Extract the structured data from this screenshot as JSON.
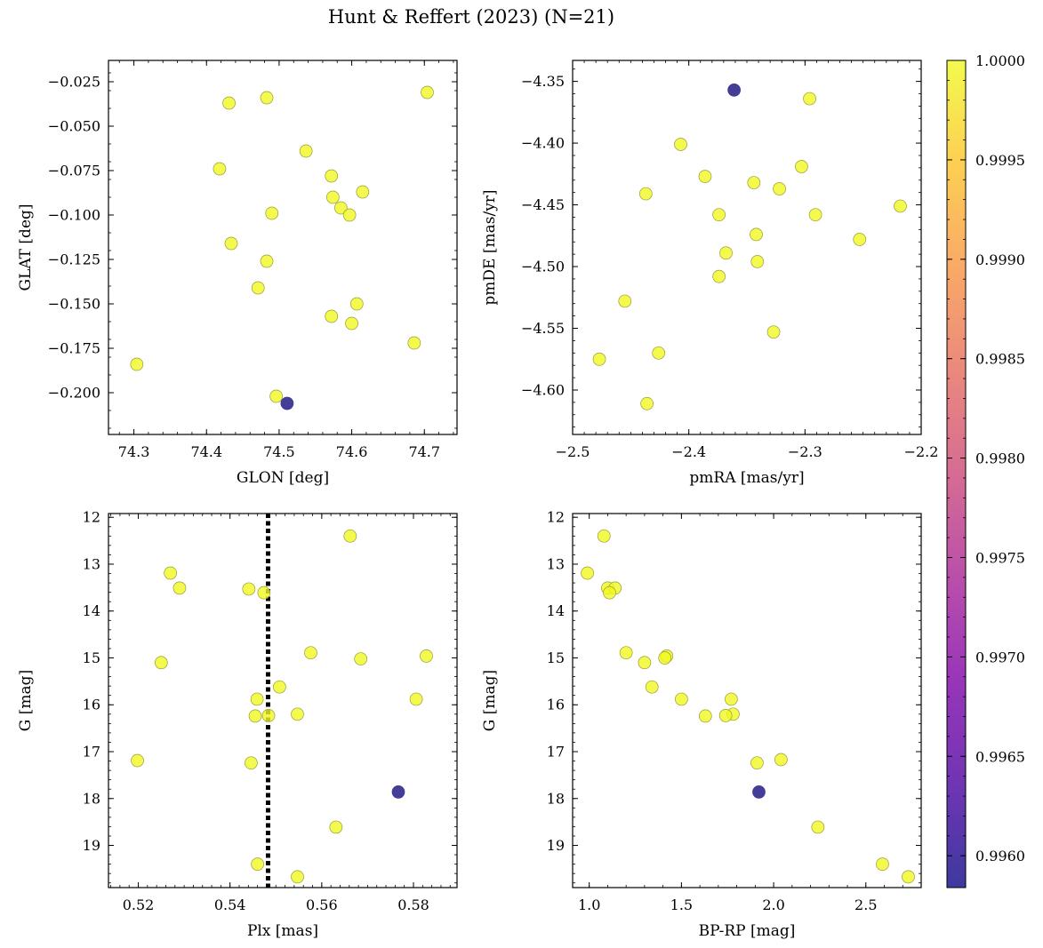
{
  "title": "Hunt & Reffert (2023) (N=21)",
  "colors": {
    "member": "#f0f921",
    "member_edge": "#9a9a3a",
    "nonmember": "#3b3492",
    "vline": "#000000"
  },
  "colorbar": {
    "colormap": "plasma",
    "range": [
      0.99584,
      1.0
    ],
    "ticks": [
      "0.9960",
      "0.9965",
      "0.9970",
      "0.9975",
      "0.9980",
      "0.9985",
      "0.9990",
      "0.9995",
      "1.0000"
    ]
  },
  "chart_data": [
    {
      "type": "scatter",
      "id": "glon-glat",
      "xlabel": "GLON [deg]",
      "ylabel": "GLAT [deg]",
      "xlim": [
        74.265,
        74.745
      ],
      "ylim": [
        -0.2235,
        -0.013
      ],
      "xticks": [
        {
          "v": 74.3,
          "label": "74.3"
        },
        {
          "v": 74.4,
          "label": "74.4"
        },
        {
          "v": 74.5,
          "label": "74.5"
        },
        {
          "v": 74.6,
          "label": "74.6"
        },
        {
          "v": 74.7,
          "label": "74.7"
        }
      ],
      "yticks": [
        {
          "v": -0.025,
          "label": "−0.025"
        },
        {
          "v": -0.05,
          "label": "−0.050"
        },
        {
          "v": -0.075,
          "label": "−0.075"
        },
        {
          "v": -0.1,
          "label": "−0.100"
        },
        {
          "v": -0.125,
          "label": "−0.125"
        },
        {
          "v": -0.15,
          "label": "−0.150"
        },
        {
          "v": -0.175,
          "label": "−0.175"
        },
        {
          "v": -0.2,
          "label": "−0.200"
        }
      ],
      "x": [
        74.431,
        74.483,
        74.704,
        74.537,
        74.418,
        74.572,
        74.574,
        74.615,
        74.585,
        74.597,
        74.49,
        74.434,
        74.483,
        74.471,
        74.607,
        74.572,
        74.6,
        74.686,
        74.304,
        74.496,
        74.511
      ],
      "y": [
        -0.037,
        -0.034,
        -0.031,
        -0.064,
        -0.074,
        -0.078,
        -0.09,
        -0.087,
        -0.096,
        -0.1,
        -0.099,
        -0.116,
        -0.126,
        -0.141,
        -0.15,
        -0.157,
        -0.161,
        -0.172,
        -0.184,
        -0.202,
        -0.206
      ],
      "prob": [
        1,
        1,
        1,
        1,
        1,
        1,
        1,
        1,
        1,
        1,
        1,
        1,
        1,
        1,
        1,
        1,
        1,
        1,
        1,
        1,
        0.99587
      ]
    },
    {
      "type": "scatter",
      "id": "pmra-pmde",
      "xlabel": "pmRA [mas/yr]",
      "ylabel": "pmDE [mas/yr]",
      "xlim": [
        -2.5,
        -2.2
      ],
      "ylim": [
        -4.636,
        -4.333
      ],
      "xticks": [
        {
          "v": -2.5,
          "label": "−2.5"
        },
        {
          "v": -2.4,
          "label": "−2.4"
        },
        {
          "v": -2.3,
          "label": "−2.3"
        },
        {
          "v": -2.2,
          "label": "−2.2"
        }
      ],
      "yticks": [
        {
          "v": -4.35,
          "label": "−4.35"
        },
        {
          "v": -4.4,
          "label": "−4.40"
        },
        {
          "v": -4.45,
          "label": "−4.45"
        },
        {
          "v": -4.5,
          "label": "−4.50"
        },
        {
          "v": -4.55,
          "label": "−4.55"
        },
        {
          "v": -4.6,
          "label": "−4.60"
        }
      ],
      "x": [
        -2.296,
        -2.407,
        -2.303,
        -2.437,
        -2.386,
        -2.344,
        -2.322,
        -2.218,
        -2.374,
        -2.291,
        -2.342,
        -2.253,
        -2.368,
        -2.341,
        -2.374,
        -2.455,
        -2.327,
        -2.477,
        -2.426,
        -2.436,
        -2.361
      ],
      "y": [
        -4.364,
        -4.401,
        -4.419,
        -4.441,
        -4.427,
        -4.432,
        -4.437,
        -4.451,
        -4.458,
        -4.458,
        -4.474,
        -4.478,
        -4.489,
        -4.496,
        -4.508,
        -4.528,
        -4.553,
        -4.575,
        -4.57,
        -4.611,
        -4.357
      ],
      "prob": [
        1,
        1,
        1,
        1,
        1,
        1,
        1,
        1,
        1,
        1,
        1,
        1,
        1,
        1,
        1,
        1,
        1,
        1,
        1,
        1,
        0.99587
      ]
    },
    {
      "type": "scatter",
      "id": "plx-g",
      "xlabel": "Plx [mas]",
      "ylabel": "G [mag]",
      "xlim": [
        0.5135,
        0.5895
      ],
      "ylim": [
        19.9,
        11.92
      ],
      "y_inverted": true,
      "xticks": [
        {
          "v": 0.52,
          "label": "0.52"
        },
        {
          "v": 0.54,
          "label": "0.54"
        },
        {
          "v": 0.56,
          "label": "0.56"
        },
        {
          "v": 0.58,
          "label": "0.58"
        }
      ],
      "yticks": [
        {
          "v": 12,
          "label": "12"
        },
        {
          "v": 13,
          "label": "13"
        },
        {
          "v": 14,
          "label": "14"
        },
        {
          "v": 15,
          "label": "15"
        },
        {
          "v": 16,
          "label": "16"
        },
        {
          "v": 17,
          "label": "17"
        },
        {
          "v": 18,
          "label": "18"
        },
        {
          "v": 19,
          "label": "19"
        }
      ],
      "vline": 0.5483,
      "x": [
        0.5662,
        0.527,
        0.529,
        0.5441,
        0.5474,
        0.525,
        0.5576,
        0.5685,
        0.5828,
        0.5508,
        0.5459,
        0.5806,
        0.5455,
        0.5484,
        0.5547,
        0.5198,
        0.5446,
        0.5631,
        0.546,
        0.5547,
        0.5767
      ],
      "y": [
        12.4,
        13.19,
        13.51,
        13.53,
        13.61,
        15.1,
        14.89,
        15.02,
        14.96,
        15.62,
        15.88,
        15.88,
        16.24,
        16.23,
        16.2,
        17.19,
        17.24,
        18.61,
        19.4,
        19.67,
        17.86
      ],
      "prob": [
        1,
        1,
        1,
        1,
        1,
        1,
        1,
        1,
        1,
        1,
        1,
        1,
        1,
        1,
        1,
        1,
        1,
        1,
        1,
        1,
        0.99587
      ]
    },
    {
      "type": "scatter",
      "id": "bprp-g",
      "xlabel": "BP-RP [mag]",
      "ylabel": "G [mag]",
      "xlim": [
        0.91,
        2.8
      ],
      "ylim": [
        19.9,
        11.92
      ],
      "y_inverted": true,
      "xticks": [
        {
          "v": 1.0,
          "label": "1.0"
        },
        {
          "v": 1.5,
          "label": "1.5"
        },
        {
          "v": 2.0,
          "label": "2.0"
        },
        {
          "v": 2.5,
          "label": "2.5"
        }
      ],
      "yticks": [
        {
          "v": 12,
          "label": "12"
        },
        {
          "v": 13,
          "label": "13"
        },
        {
          "v": 14,
          "label": "14"
        },
        {
          "v": 15,
          "label": "15"
        },
        {
          "v": 16,
          "label": "16"
        },
        {
          "v": 17,
          "label": "17"
        },
        {
          "v": 18,
          "label": "18"
        },
        {
          "v": 19,
          "label": "19"
        }
      ],
      "x": [
        1.08,
        0.99,
        1.1,
        1.14,
        1.11,
        1.2,
        1.42,
        1.41,
        1.3,
        1.34,
        1.5,
        1.77,
        1.78,
        1.74,
        1.63,
        2.04,
        1.91,
        2.24,
        2.59,
        2.73,
        1.92
      ],
      "y": [
        12.4,
        13.19,
        13.51,
        13.51,
        13.61,
        14.89,
        14.96,
        15.0,
        15.1,
        15.62,
        15.88,
        15.88,
        16.2,
        16.23,
        16.24,
        17.17,
        17.24,
        18.61,
        19.4,
        19.67,
        17.86
      ],
      "prob": [
        1,
        1,
        1,
        1,
        1,
        1,
        1,
        1,
        1,
        1,
        1,
        1,
        1,
        1,
        1,
        1,
        1,
        1,
        1,
        1,
        0.99587
      ]
    }
  ]
}
